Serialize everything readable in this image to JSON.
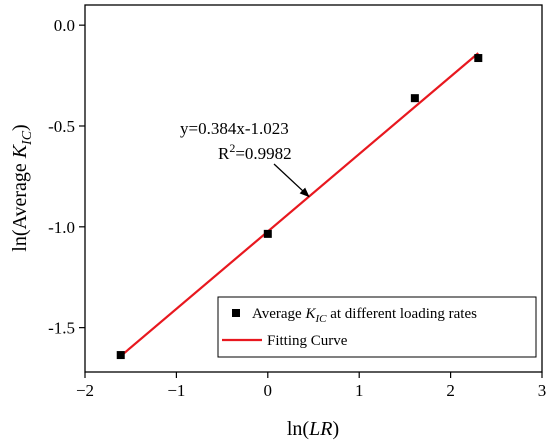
{
  "chart_data": {
    "type": "scatter",
    "xlabel_prefix": "ln(",
    "xlabel_var": "LR",
    "xlabel_suffix": ")",
    "ylabel_prefix": "ln(Average ",
    "ylabel_var": "K",
    "ylabel_sub": "IC",
    "ylabel_suffix": ")",
    "xlim": [
      -2,
      3
    ],
    "ylim": [
      -1.72,
      0.1
    ],
    "xticks": [
      -2,
      -1,
      0,
      1,
      2,
      3
    ],
    "xtick_labels": [
      "−2",
      "−1",
      "0",
      "1",
      "2",
      "3"
    ],
    "yticks": [
      0.0,
      -0.5,
      -1.0,
      -1.5
    ],
    "ytick_labels": [
      "0.0",
      "-0.5",
      "-1.0",
      "-1.5"
    ],
    "grid": false,
    "legend_position": "bottom-right",
    "series": [
      {
        "name": "Average K_IC at different loading rates",
        "kind": "scatter",
        "marker": "square",
        "color": "#000000",
        "x": [
          -1.609,
          0.0,
          1.609,
          2.303
        ],
        "y": [
          -1.636,
          -1.035,
          -0.362,
          -0.163
        ]
      },
      {
        "name": "Fitting Curve",
        "kind": "line",
        "color": "#e8181f",
        "slope": 0.384,
        "intercept": -1.023,
        "x_range": [
          -1.609,
          2.303
        ]
      }
    ],
    "legend": {
      "scatter_prefix": "Average ",
      "scatter_var": "K",
      "scatter_sub": "IC",
      "scatter_suffix": " at different loading rates",
      "line_label": "Fitting Curve"
    },
    "annotation": {
      "equation": "y=0.384x-1.023",
      "r2_prefix": "R",
      "r2_sup": "2",
      "r2_suffix": "=0.9982",
      "arrow_target": [
        0.45,
        -0.85
      ]
    }
  }
}
